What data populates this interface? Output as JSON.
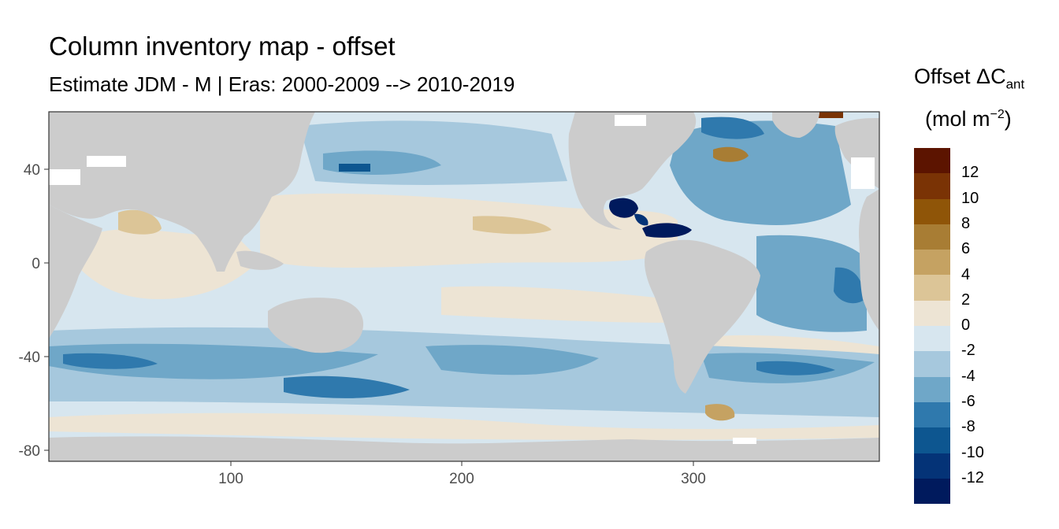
{
  "title": "Column inventory map - offset",
  "subtitle": "Estimate JDM - M | Eras: 2000-2009 --> 2010-2019",
  "legend": {
    "title_main": "Offset ΔC",
    "title_sub": "ant",
    "units_main": "(mol m",
    "units_sup": "−2",
    "units_end": ")",
    "swatches": [
      "#5c1400",
      "#7a3305",
      "#8f5508",
      "#a87d34",
      "#c5a262",
      "#dcc597",
      "#ede4d4",
      "#d7e6ef",
      "#a6c8dd",
      "#6fa7c8",
      "#2f79ad",
      "#0d5690",
      "#043377",
      "#001a5d"
    ],
    "labels": [
      "12",
      "10",
      "8",
      "6",
      "4",
      "2",
      "0",
      "-2",
      "-4",
      "-6",
      "-8",
      "-10",
      "-12"
    ]
  },
  "axes": {
    "x_ticks": [
      "100",
      "200",
      "300"
    ],
    "y_ticks": [
      "40",
      "0",
      "-40",
      "-80"
    ]
  },
  "colors": {
    "land": "#cccccc",
    "ocean_base": "#d7e6ef",
    "panel_border": "#333333"
  }
}
